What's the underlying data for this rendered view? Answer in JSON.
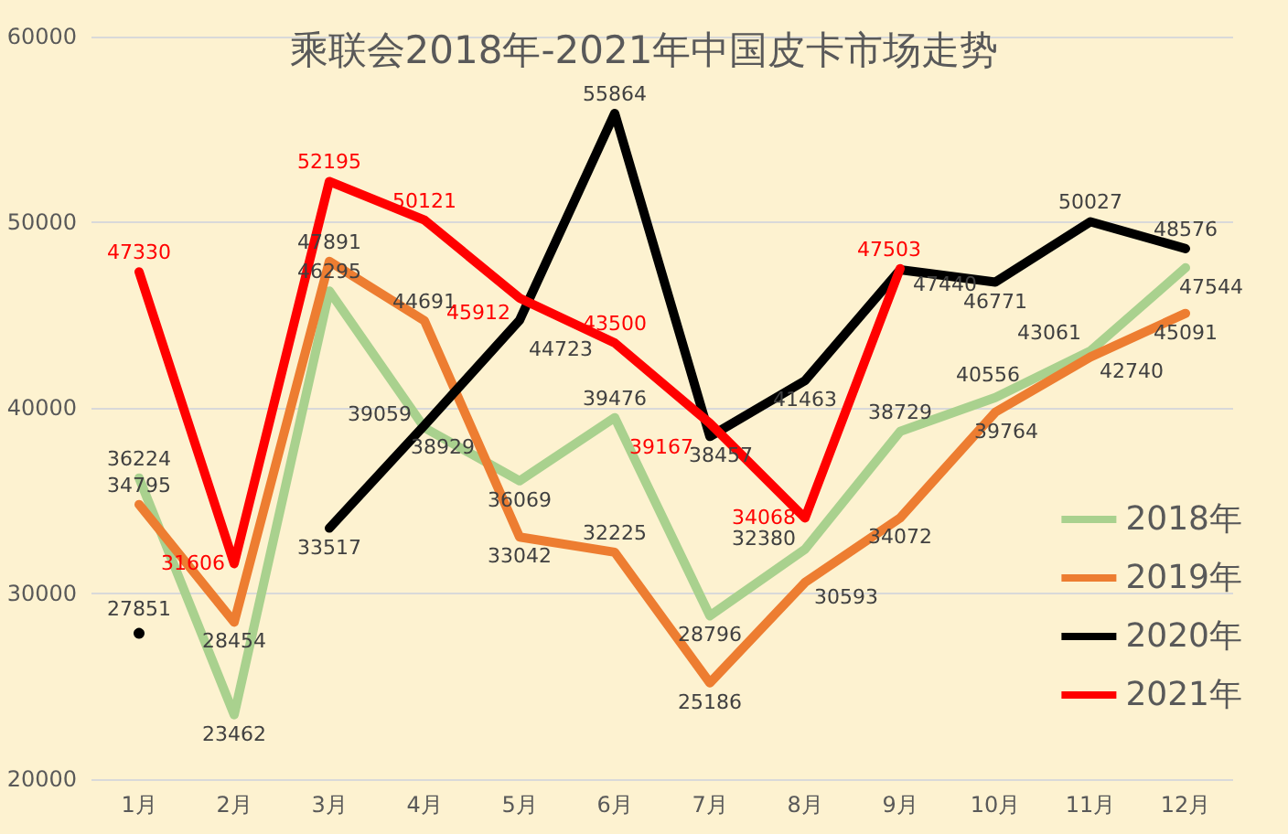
{
  "chart_data": {
    "type": "line",
    "title": "乘联会2018年-2021年中国皮卡市场走势",
    "categories": [
      "1月",
      "2月",
      "3月",
      "4月",
      "5月",
      "6月",
      "7月",
      "8月",
      "9月",
      "10月",
      "11月",
      "12月"
    ],
    "series": [
      {
        "name": "2018年",
        "color": "#a9d18e",
        "values": [
          36224,
          23462,
          46295,
          38929,
          36069,
          39476,
          28796,
          32380,
          38729,
          40556,
          43061,
          47544
        ]
      },
      {
        "name": "2019年",
        "color": "#ed7d31",
        "values": [
          34795,
          28454,
          47891,
          44691,
          33042,
          32225,
          25186,
          30593,
          34072,
          39764,
          42740,
          45091
        ]
      },
      {
        "name": "2020年",
        "color": "#000000",
        "values": [
          27851,
          null,
          33517,
          39059,
          44723,
          55864,
          38457,
          41463,
          47440,
          46771,
          50027,
          48576
        ]
      },
      {
        "name": "2021年",
        "color": "#ff0000",
        "values": [
          47330,
          31606,
          52195,
          50121,
          45912,
          43500,
          39167,
          34068,
          47503,
          null,
          null,
          null
        ]
      }
    ],
    "ylim": [
      20000,
      60000
    ],
    "yticks": [
      20000,
      30000,
      40000,
      50000,
      60000
    ],
    "grid": "y",
    "legend": "right",
    "data_labels": true,
    "marker": "none",
    "line_style": "solid"
  }
}
